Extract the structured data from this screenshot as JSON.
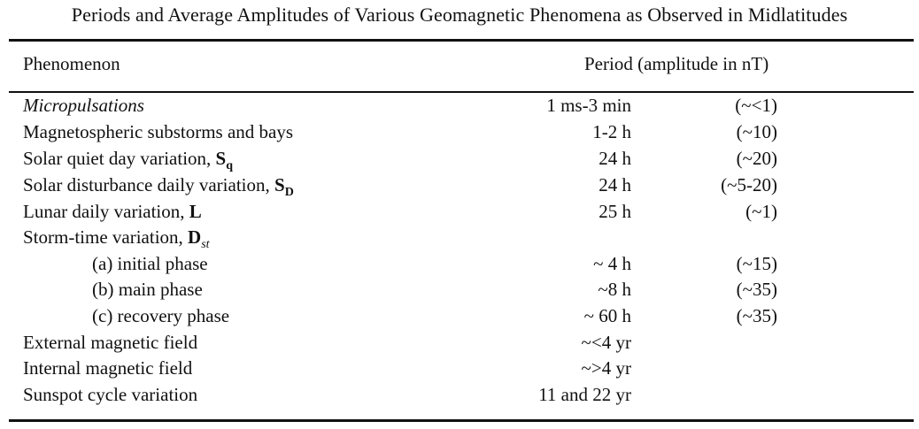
{
  "table": {
    "caption": "Periods and Average Amplitudes of Various Geomagnetic Phenomena as Observed in Midlatitudes",
    "headers": {
      "phenomenon": "Phenomenon",
      "period": "Period (amplitude in nT)"
    },
    "rows": [
      {
        "name": "Micropulsations",
        "period": "1 ms-3 min",
        "amplitude": "(~<1)"
      },
      {
        "name": "Magnetospheric substorms and bays",
        "period": "1-2 h",
        "amplitude": "(~10)"
      },
      {
        "name": "Solar quiet day variation, ",
        "symbol": "S",
        "symbol_sub": "q",
        "period": "24 h",
        "amplitude": "(~20)"
      },
      {
        "name": "Solar disturbance daily variation, ",
        "symbol": "S",
        "symbol_sub": "D",
        "period": "24 h",
        "amplitude": "(~5-20)"
      },
      {
        "name": "Lunar daily variation, ",
        "symbol": "L",
        "period": "25 h",
        "amplitude": "(~1)"
      },
      {
        "name": "Storm-time variation, ",
        "symbol": "D",
        "symbol_sub": "st"
      },
      {
        "name": "(a) initial phase",
        "period": "~ 4 h",
        "amplitude": "(~15)"
      },
      {
        "name": "(b) main phase",
        "period": "~8 h",
        "amplitude": "(~35)"
      },
      {
        "name": "(c) recovery phase",
        "period": "~ 60 h",
        "amplitude": "(~35)"
      },
      {
        "name": "External magnetic field",
        "period": "~<4 yr"
      },
      {
        "name": "Internal magnetic field",
        "period": "~>4 yr"
      },
      {
        "name": "Sunspot cycle variation",
        "period": "11 and 22 yr"
      }
    ]
  }
}
